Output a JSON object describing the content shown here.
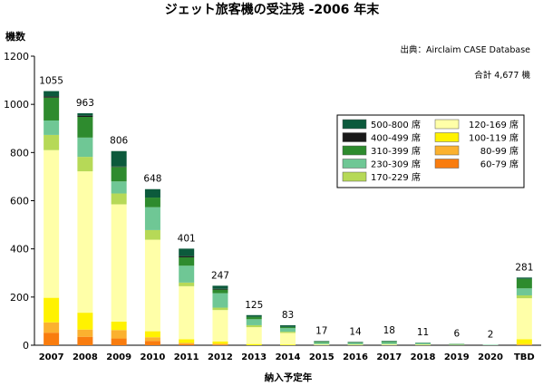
{
  "chart_data": {
    "type": "bar",
    "stacked": true,
    "title": "ジェット旅客機の受注残 -2006 年末",
    "source": "出典：Airclaim CASE Database",
    "total_label": "合計 4,677 機",
    "ylabel": "機数",
    "xlabel": "納入予定年",
    "ylim": [
      0,
      1200
    ],
    "yticks": [
      0,
      200,
      400,
      600,
      800,
      1000,
      1200
    ],
    "grid": false,
    "legend_position": "right",
    "categories": [
      "2007",
      "2008",
      "2009",
      "2010",
      "2011",
      "2012",
      "2013",
      "2014",
      "2015",
      "2016",
      "2017",
      "2018",
      "2019",
      "2020",
      "TBD"
    ],
    "totals": [
      1055,
      963,
      806,
      648,
      401,
      247,
      125,
      83,
      17,
      14,
      18,
      11,
      6,
      2,
      281
    ],
    "series": [
      {
        "name": "60-79 席",
        "color": "#f97c0e",
        "values": [
          52,
          35,
          28,
          18,
          5,
          3,
          0,
          0,
          0,
          0,
          0,
          0,
          0,
          0,
          0
        ]
      },
      {
        "name": "80-99 席",
        "color": "#fbb12f",
        "values": [
          43,
          30,
          35,
          15,
          5,
          3,
          0,
          0,
          0,
          0,
          0,
          0,
          0,
          0,
          5
        ]
      },
      {
        "name": "100-119 席",
        "color": "#fff200",
        "values": [
          102,
          70,
          35,
          25,
          15,
          10,
          5,
          3,
          0,
          0,
          0,
          0,
          0,
          0,
          20
        ]
      },
      {
        "name": "120-169 席",
        "color": "#ffffa8",
        "values": [
          613,
          587,
          487,
          380,
          220,
          130,
          70,
          48,
          3,
          2,
          3,
          2,
          1,
          0,
          170
        ]
      },
      {
        "name": "170-229 席",
        "color": "#b6d957",
        "values": [
          63,
          60,
          45,
          40,
          15,
          10,
          8,
          5,
          2,
          2,
          2,
          2,
          1,
          0,
          12
        ]
      },
      {
        "name": "230-309 席",
        "color": "#6fc795",
        "values": [
          60,
          80,
          50,
          95,
          70,
          60,
          25,
          15,
          7,
          6,
          8,
          5,
          3,
          2,
          29
        ]
      },
      {
        "name": "310-399 席",
        "color": "#2e8b2e",
        "values": [
          95,
          86,
          60,
          40,
          35,
          15,
          10,
          5,
          3,
          2,
          3,
          1,
          1,
          0,
          40
        ]
      },
      {
        "name": "400-499 席",
        "color": "#1a1a1a",
        "values": [
          5,
          5,
          2,
          0,
          5,
          3,
          0,
          0,
          0,
          0,
          0,
          0,
          0,
          0,
          0
        ]
      },
      {
        "name": "500-800 席",
        "color": "#0c5a3c",
        "values": [
          22,
          10,
          64,
          35,
          31,
          13,
          7,
          7,
          2,
          2,
          2,
          1,
          0,
          0,
          5
        ]
      }
    ]
  }
}
